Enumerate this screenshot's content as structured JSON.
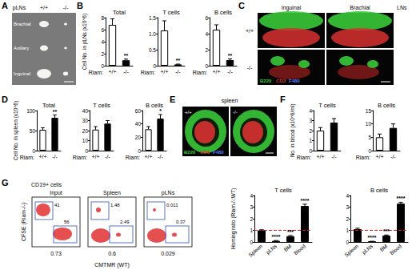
{
  "figure": {
    "A": {
      "letter": "A",
      "header": "pLNs",
      "columns": [
        "+/+",
        "-/-"
      ],
      "rows": [
        "Brachial",
        "Axillary",
        "Inguinal"
      ]
    },
    "C": {
      "letter": "C",
      "columns": [
        "Inguinal",
        "Brachial"
      ],
      "side_label": "LNs",
      "rows": [
        "+/+",
        "-/-"
      ],
      "stains": [
        {
          "name": "B220",
          "color": "#38c838"
        },
        {
          "name": "CD3",
          "color": "#d83030"
        },
        {
          "name": "F480",
          "color": "#5a78ff"
        }
      ]
    },
    "E": {
      "letter": "E",
      "title": "spleen",
      "columns": [
        "+/+",
        "-/-"
      ],
      "stains": [
        {
          "name": "B220",
          "color": "#38c838"
        },
        {
          "name": "CD3",
          "color": "#d83030"
        },
        {
          "name": "F480",
          "color": "#5a78ff"
        }
      ]
    },
    "G_flow": {
      "letter": "G",
      "title": "CD19+ cells",
      "ylabel": "CFSE (Riam-/-)",
      "xlabel": "CMTMR (WT)",
      "plots": [
        {
          "name": "Input",
          "gates": [
            41,
            56
          ],
          "ratio": 0.73
        },
        {
          "name": "Spleen",
          "gates": [
            1.48,
            2.49
          ],
          "ratio": 0.6
        },
        {
          "name": "pLNs",
          "gates": [
            0.011,
            0.37
          ],
          "ratio": 0.029
        }
      ]
    }
  },
  "chart_data": [
    {
      "panel": "B",
      "type": "bar",
      "title": "Total",
      "ylabel": "Cell No. in pLNs (x10^6)",
      "xlabel": "Riam:",
      "categories": [
        "+/+",
        "-/-"
      ],
      "values": [
        6.8,
        0.9
      ],
      "errors": [
        1.0,
        0.2
      ],
      "colors": [
        "#ffffff",
        "#000000"
      ],
      "ylim": [
        0,
        8
      ],
      "yticks": [
        0,
        2,
        4,
        6,
        8
      ],
      "annotations": [
        {
          "index": 1,
          "text": "**"
        }
      ]
    },
    {
      "type": "bar",
      "title": "T cells",
      "xlabel": "Riam:",
      "categories": [
        "+/+",
        "-/-"
      ],
      "values": [
        1.1,
        0.04
      ],
      "errors": [
        0.3,
        0.01
      ],
      "colors": [
        "#ffffff",
        "#000000"
      ],
      "ylim": [
        0,
        1.5
      ],
      "yticks": [
        0,
        0.5,
        {
          "value": 1,
          "label": "1.0"
        },
        1.5
      ],
      "annotations": [
        {
          "index": 1,
          "text": "**"
        }
      ]
    },
    {
      "type": "bar",
      "title": "B cells",
      "xlabel": "Riam:",
      "categories": [
        "+/+",
        "-/-"
      ],
      "values": [
        4.5,
        0.7
      ],
      "errors": [
        0.6,
        0.15
      ],
      "colors": [
        "#ffffff",
        "#000000"
      ],
      "ylim": [
        0,
        6
      ],
      "yticks": [
        0,
        2,
        4,
        6
      ],
      "annotations": [
        {
          "index": 1,
          "text": "**"
        }
      ]
    },
    {
      "panel": "D",
      "type": "bar",
      "title": "Total",
      "ylabel": "Cell No. in spleen (x10^6)",
      "xlabel": "Riam:",
      "categories": [
        "+/+",
        "-/-"
      ],
      "values": [
        52,
        82
      ],
      "errors": [
        5,
        7
      ],
      "colors": [
        "#ffffff",
        "#000000"
      ],
      "ylim": [
        0,
        100
      ],
      "yticks": [
        0,
        50,
        100
      ],
      "annotations": [
        {
          "index": 1,
          "text": "**"
        }
      ]
    },
    {
      "type": "bar",
      "title": "T cells",
      "xlabel": "Riam:",
      "categories": [
        "+/+",
        "-/-"
      ],
      "values": [
        21,
        27
      ],
      "errors": [
        3,
        3
      ],
      "colors": [
        "#ffffff",
        "#000000"
      ],
      "ylim": [
        0,
        40
      ],
      "yticks": [
        0,
        10,
        20,
        30,
        40
      ]
    },
    {
      "type": "bar",
      "title": "B cells",
      "xlabel": "Riam:",
      "categories": [
        "+/+",
        "-/-"
      ],
      "values": [
        32,
        48
      ],
      "errors": [
        4,
        6
      ],
      "colors": [
        "#ffffff",
        "#000000"
      ],
      "ylim": [
        0,
        60
      ],
      "yticks": [
        0,
        20,
        40,
        60
      ],
      "annotations": [
        {
          "index": 1,
          "text": "*"
        }
      ]
    },
    {
      "panel": "F",
      "type": "bar",
      "title": "T cells",
      "ylabel": "No. in blood (x10^6/ml)",
      "xlabel": "Riam:",
      "categories": [
        "+/+",
        "-/-"
      ],
      "values": [
        2.0,
        2.8
      ],
      "errors": [
        0.3,
        0.4
      ],
      "colors": [
        "#ffffff",
        "#000000"
      ],
      "ylim": [
        0,
        4
      ],
      "yticks": [
        0,
        1,
        2,
        3,
        4
      ]
    },
    {
      "type": "bar",
      "title": "B cells",
      "xlabel": "Riam:",
      "categories": [
        "+/+",
        "-/-"
      ],
      "values": [
        5,
        8.5
      ],
      "errors": [
        1.2,
        1.5
      ],
      "colors": [
        "#ffffff",
        "#000000"
      ],
      "ylim": [
        0,
        15
      ],
      "yticks": [
        0,
        5,
        10,
        15
      ]
    },
    {
      "type": "bar",
      "title": "T cells",
      "ylabel": "Homing ratio (Riam-/-:WT)",
      "categories": [
        "Spleen",
        "pLNs",
        "BM",
        "Blood"
      ],
      "values": [
        1.0,
        0.1,
        0.5,
        3.1
      ],
      "errors": [
        0.05,
        0.02,
        0.05,
        0.15
      ],
      "color": "#000000",
      "reference_line": 1,
      "ylim": [
        0,
        4
      ],
      "yticks": [
        0,
        1,
        2,
        3,
        4
      ],
      "annotations": [
        {
          "index": 1,
          "text": "****"
        },
        {
          "index": 2,
          "text": "***"
        },
        {
          "index": 3,
          "text": "****"
        }
      ]
    },
    {
      "type": "bar",
      "title": "B cells",
      "categories": [
        "Spleen",
        "pLNs",
        "BM",
        "Blood"
      ],
      "values": [
        1.1,
        0.05,
        0.55,
        3.3
      ],
      "errors": [
        0.08,
        0.01,
        0.05,
        0.12
      ],
      "color": "#000000",
      "reference_line": 1,
      "ylim": [
        0,
        4
      ],
      "yticks": [
        0,
        1,
        2,
        3,
        4
      ],
      "annotations": [
        {
          "index": 1,
          "text": "****"
        },
        {
          "index": 2,
          "text": "***"
        },
        {
          "index": 3,
          "text": "****"
        }
      ]
    }
  ]
}
